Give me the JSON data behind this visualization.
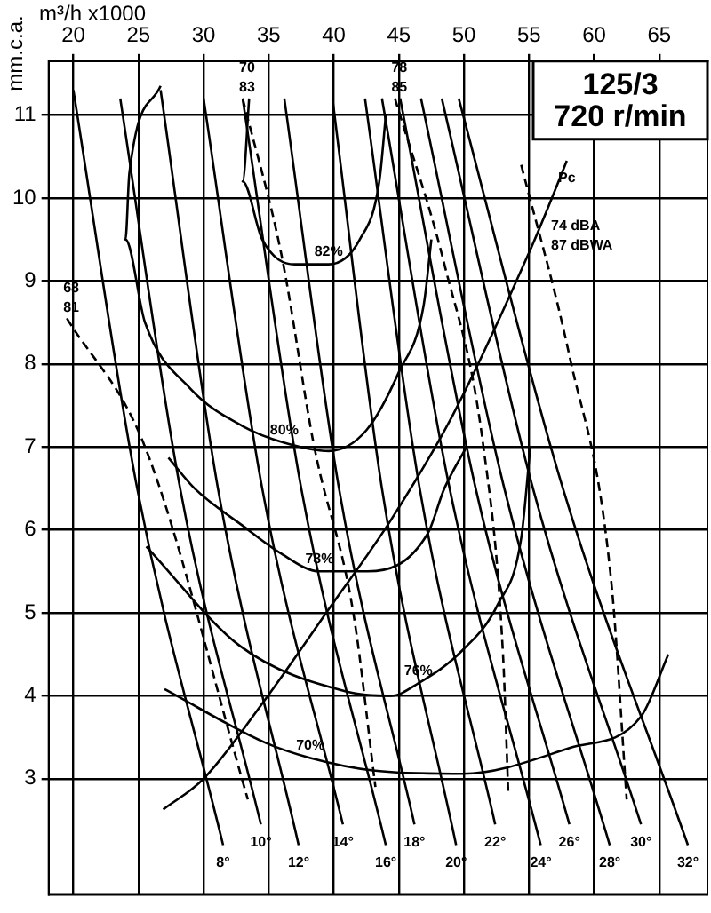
{
  "chart_data": {
    "type": "line",
    "title": "125/3",
    "subtitle": "720 r/min",
    "xlabel": "m³/h x1000",
    "ylabel": "mm.c.a.",
    "xlim": [
      18.1,
      68.7
    ],
    "ylim": [
      1.6,
      11.65
    ],
    "xticks": [
      20,
      25,
      30,
      35,
      40,
      45,
      50,
      55,
      60,
      65
    ],
    "yticks": [
      3,
      4,
      5,
      6,
      7,
      8,
      9,
      10,
      11
    ],
    "grid": true,
    "legend": false,
    "marker": "none",
    "series": [
      {
        "color": "#000000",
        "x": [
          20.0,
          24.9,
          31.5
        ],
        "values": [
          11.3,
          6.5,
          2.2
        ]
      },
      {
        "color": "#000000",
        "x": [
          23.6,
          28.2,
          34.4
        ],
        "values": [
          11.2,
          6.5,
          2.45
        ]
      },
      {
        "color": "#000000",
        "x": [
          26.7,
          31.1,
          37.3
        ],
        "values": [
          11.3,
          6.5,
          2.2
        ]
      },
      {
        "color": "#000000",
        "x": [
          30.0,
          34.5,
          40.7
        ],
        "values": [
          11.2,
          6.5,
          2.45
        ]
      },
      {
        "color": "#000000",
        "x": [
          33.0,
          37.5,
          44.0
        ],
        "values": [
          11.2,
          6.5,
          2.2
        ]
      },
      {
        "color": "#000000",
        "x": [
          36.2,
          40.4,
          46.2
        ],
        "values": [
          11.2,
          6.5,
          2.45
        ]
      },
      {
        "color": "#000000",
        "x": [
          39.9,
          43.7,
          49.4
        ],
        "values": [
          11.2,
          6.5,
          2.2
        ]
      },
      {
        "color": "#000000",
        "x": [
          42.4,
          46.6,
          52.4
        ],
        "values": [
          11.2,
          6.5,
          2.45
        ]
      },
      {
        "color": "#000000",
        "x": [
          43.7,
          48.9,
          55.9
        ],
        "values": [
          11.2,
          6.5,
          2.2
        ]
      },
      {
        "color": "#000000",
        "x": [
          45.1,
          50.9,
          58.1
        ],
        "values": [
          11.2,
          6.5,
          2.45
        ]
      },
      {
        "color": "#000000",
        "x": [
          46.7,
          53.1,
          61.2
        ],
        "values": [
          11.2,
          6.5,
          2.2
        ]
      },
      {
        "color": "#000000",
        "x": [
          48.3,
          55.3,
          63.6
        ],
        "values": [
          11.2,
          6.5,
          2.45
        ]
      },
      {
        "color": "#000000",
        "x": [
          49.6,
          57.6,
          67.2
        ],
        "values": [
          11.2,
          6.5,
          2.2
        ]
      },
      {
        "color": "#000000",
        "x": [
          27.0,
          34.8,
          38.2,
          43.0,
          49.9,
          58.1,
          63.6,
          65.7
        ],
        "values": [
          4.08,
          3.43,
          3.25,
          3.1,
          3.06,
          3.37,
          3.75,
          4.5
        ]
      },
      {
        "color": "#000000",
        "x": [
          25.6,
          32.8,
          41.0,
          44.4,
          46.5,
          49.9,
          52.6,
          54.4,
          55.1
        ],
        "values": [
          5.8,
          4.6,
          4.05,
          4.0,
          4.15,
          4.55,
          5.1,
          5.9,
          7.0
        ]
      },
      {
        "color": "#000000",
        "x": [
          27.3,
          29.3,
          33.0,
          35.8,
          38.9,
          42.6,
          47.2,
          48.5,
          50.2
        ],
        "values": [
          6.87,
          6.5,
          6.05,
          5.73,
          5.5,
          5.5,
          5.95,
          6.5,
          7.0
        ]
      },
      {
        "color": "#000000",
        "x": [
          26.7,
          24.3,
          24.0,
          25.5,
          29.0,
          33.0,
          36.2,
          39.6,
          42.5,
          45.0,
          46.9,
          47.5
        ],
        "values": [
          11.35,
          10.3,
          9.5,
          8.5,
          7.7,
          7.25,
          7.05,
          6.95,
          7.2,
          7.9,
          8.7,
          9.5
        ]
      },
      {
        "color": "#000000",
        "x": [
          33.5,
          33.0,
          34.5,
          37.0,
          39.6,
          42.0,
          43.5,
          44.0
        ],
        "values": [
          11.2,
          10.2,
          9.5,
          9.2,
          9.2,
          9.5,
          10.2,
          11.0
        ]
      },
      {
        "color": "#000000",
        "x": [
          26.9,
          30.0,
          34.8,
          39.6,
          44.4,
          49.2,
          55.0,
          56.5,
          57.9
        ],
        "values": [
          2.63,
          3.0,
          3.97,
          5.04,
          6.12,
          7.4,
          9.34,
          9.9,
          10.45
        ]
      },
      {
        "color": "#000000",
        "line_style": "dashed",
        "x": [
          19.5,
          25.5,
          33.4
        ],
        "values": [
          8.55,
          7.0,
          2.75
        ]
      },
      {
        "color": "#000000",
        "line_style": "dashed",
        "x": [
          33.0,
          36.0,
          38.5,
          41.5,
          43.2
        ],
        "values": [
          11.2,
          9.3,
          7.0,
          5.0,
          2.9
        ]
      },
      {
        "color": "#000000",
        "line_style": "dashed",
        "x": [
          44.7,
          48.5,
          51.5,
          53.0,
          53.4
        ],
        "values": [
          11.2,
          9.2,
          7.0,
          4.5,
          2.85
        ]
      },
      {
        "color": "#000000",
        "line_style": "dashed",
        "x": [
          54.4,
          58.1,
          61.3,
          62.5
        ],
        "values": [
          10.4,
          8.1,
          5.4,
          2.75
        ]
      }
    ],
    "annotations": [
      {
        "text": "8°",
        "x": 31.5,
        "y": 2.2
      },
      {
        "text": "10°",
        "x": 34.4,
        "y": 2.45
      },
      {
        "text": "12°",
        "x": 37.3,
        "y": 2.2
      },
      {
        "text": "14°",
        "x": 40.7,
        "y": 2.45
      },
      {
        "text": "16°",
        "x": 44.0,
        "y": 2.2
      },
      {
        "text": "18°",
        "x": 46.2,
        "y": 2.45
      },
      {
        "text": "20°",
        "x": 49.4,
        "y": 2.2
      },
      {
        "text": "22°",
        "x": 52.4,
        "y": 2.45
      },
      {
        "text": "24°",
        "x": 55.9,
        "y": 2.2
      },
      {
        "text": "26°",
        "x": 58.1,
        "y": 2.45
      },
      {
        "text": "28°",
        "x": 61.2,
        "y": 2.2
      },
      {
        "text": "30°",
        "x": 63.6,
        "y": 2.45
      },
      {
        "text": "32°",
        "x": 67.2,
        "y": 2.2
      },
      {
        "text": "70%",
        "x": 38.2,
        "y": 3.25
      },
      {
        "text": "76%",
        "x": 46.5,
        "y": 4.15
      },
      {
        "text": "78%",
        "x": 38.9,
        "y": 5.5
      },
      {
        "text": "80%",
        "x": 36.2,
        "y": 7.05
      },
      {
        "text": "82%",
        "x": 39.6,
        "y": 9.2
      },
      {
        "text": "Pc",
        "x": 57.9,
        "y": 10.45
      },
      {
        "text": "68\n81",
        "x": 19.5,
        "y": 8.55
      },
      {
        "text": "70\n83",
        "x": 33.0,
        "y": 11.2
      },
      {
        "text": "78\n85",
        "x": 44.7,
        "y": 11.2
      },
      {
        "text": "74 dBA\n87 dBWA",
        "x": 55.6,
        "y": 9.66
      }
    ]
  }
}
